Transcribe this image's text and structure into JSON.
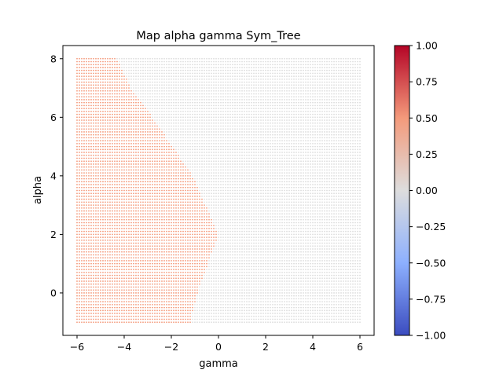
{
  "chart_data": {
    "type": "scatter",
    "title": "Map alpha gamma Sym_Tree",
    "xlabel": "gamma",
    "ylabel": "alpha",
    "xlim": [
      -6.6,
      6.6
    ],
    "ylim": [
      -1.45,
      8.45
    ],
    "xticks": [
      -6,
      -4,
      -2,
      0,
      2,
      4,
      6
    ],
    "yticks": [
      0,
      2,
      4,
      6,
      8
    ],
    "grid": false,
    "grid_x_range": [
      -6,
      6
    ],
    "grid_y_range": [
      -1,
      8
    ],
    "grid_points_x": 121,
    "grid_points_y": 91,
    "region_rule": "points with gamma < boundary(alpha) have value 0.5, all other points have value 0",
    "boundary": {
      "alpha": [
        -1,
        0,
        2,
        4,
        6,
        7,
        8
      ],
      "gamma": [
        -1.2,
        -0.9,
        0,
        -1.1,
        -2.8,
        -3.7,
        -4.3
      ]
    },
    "region_values": {
      "inside": 0.5,
      "outside": 0.0
    },
    "colormap": {
      "name": "coolwarm",
      "range": [
        -1.0,
        1.0
      ],
      "stops": [
        {
          "value": -1.0,
          "color": "#3b4cc0"
        },
        {
          "value": -0.5,
          "color": "#8db0fe"
        },
        {
          "value": 0.0,
          "color": "#dddddd"
        },
        {
          "value": 0.5,
          "color": "#f49a7b"
        },
        {
          "value": 1.0,
          "color": "#b40426"
        }
      ]
    },
    "colorbar": {
      "ticks": [
        -1.0,
        -0.75,
        -0.5,
        -0.25,
        0.0,
        0.25,
        0.5,
        0.75,
        1.0
      ],
      "tick_labels": [
        "−1.00",
        "−0.75",
        "−0.50",
        "−0.25",
        "0.00",
        "0.25",
        "0.50",
        "0.75",
        "1.00"
      ]
    }
  }
}
